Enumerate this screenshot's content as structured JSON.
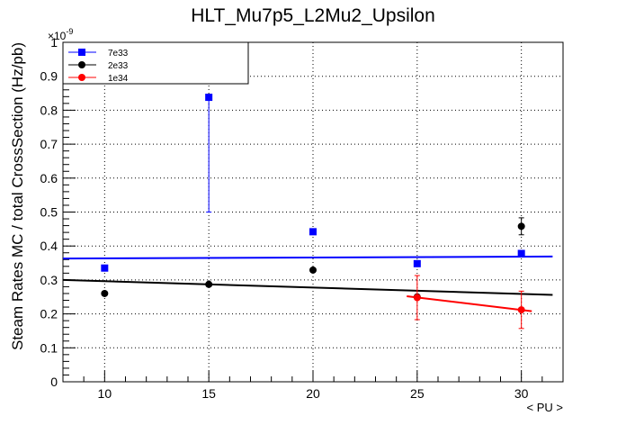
{
  "chart_data": {
    "type": "scatter",
    "title": "HLT_Mu7p5_L2Mu2_Upsilon",
    "xlabel": "< PU >",
    "ylabel": "Steam Rates MC / total CrossSection (Hz/pb)",
    "y_multiplier": "×10",
    "y_multiplier_exp": "-9",
    "xlim": [
      8,
      32
    ],
    "ylim": [
      0,
      1
    ],
    "x_ticks": [
      10,
      15,
      20,
      25,
      30
    ],
    "x_tick_labels": [
      "10",
      "15",
      "20",
      "25",
      "30"
    ],
    "y_ticks": [
      0,
      0.1,
      0.2,
      0.3,
      0.4,
      0.5,
      0.6,
      0.7,
      0.8,
      0.9,
      1
    ],
    "y_tick_labels": [
      "0",
      "0.1",
      "0.2",
      "0.3",
      "0.4",
      "0.5",
      "0.6",
      "0.7",
      "0.8",
      "0.9",
      "1"
    ],
    "grid": true,
    "legend_position": "top-left",
    "series": [
      {
        "name": "7e33",
        "color": "#0000ff",
        "marker": "square",
        "points": [
          {
            "x": 10,
            "y": 0.335,
            "err_lo": 0.008,
            "err_hi": 0.008
          },
          {
            "x": 15,
            "y": 0.838,
            "err_lo": 0.338,
            "err_hi": 0.0
          },
          {
            "x": 20,
            "y": 0.442,
            "err_lo": 0.0,
            "err_hi": 0.0
          },
          {
            "x": 25,
            "y": 0.348,
            "err_lo": 0.0,
            "err_hi": 0.0
          },
          {
            "x": 30,
            "y": 0.378,
            "err_lo": 0.0,
            "err_hi": 0.0
          }
        ],
        "fit": {
          "x_start": 8,
          "y_start": 0.363,
          "x_end": 31.5,
          "y_end": 0.369
        }
      },
      {
        "name": "2e33",
        "color": "#000000",
        "marker": "circle",
        "points": [
          {
            "x": 10,
            "y": 0.26,
            "err_lo": 0.0,
            "err_hi": 0.0
          },
          {
            "x": 15,
            "y": 0.287,
            "err_lo": 0.0,
            "err_hi": 0.0
          },
          {
            "x": 20,
            "y": 0.329,
            "err_lo": 0.0,
            "err_hi": 0.0
          },
          {
            "x": 25,
            "y": 0.25,
            "err_lo": 0.0,
            "err_hi": 0.0
          },
          {
            "x": 30,
            "y": 0.458,
            "err_lo": 0.025,
            "err_hi": 0.025
          }
        ],
        "fit": {
          "x_start": 8,
          "y_start": 0.3,
          "x_end": 31.5,
          "y_end": 0.256
        }
      },
      {
        "name": "1e34",
        "color": "#ff0000",
        "marker": "circle",
        "points": [
          {
            "x": 25,
            "y": 0.248,
            "err_lo": 0.065,
            "err_hi": 0.065
          },
          {
            "x": 30,
            "y": 0.212,
            "err_lo": 0.055,
            "err_hi": 0.055
          }
        ],
        "fit": {
          "x_start": 24.5,
          "y_start": 0.252,
          "x_end": 30.5,
          "y_end": 0.208
        }
      }
    ]
  }
}
